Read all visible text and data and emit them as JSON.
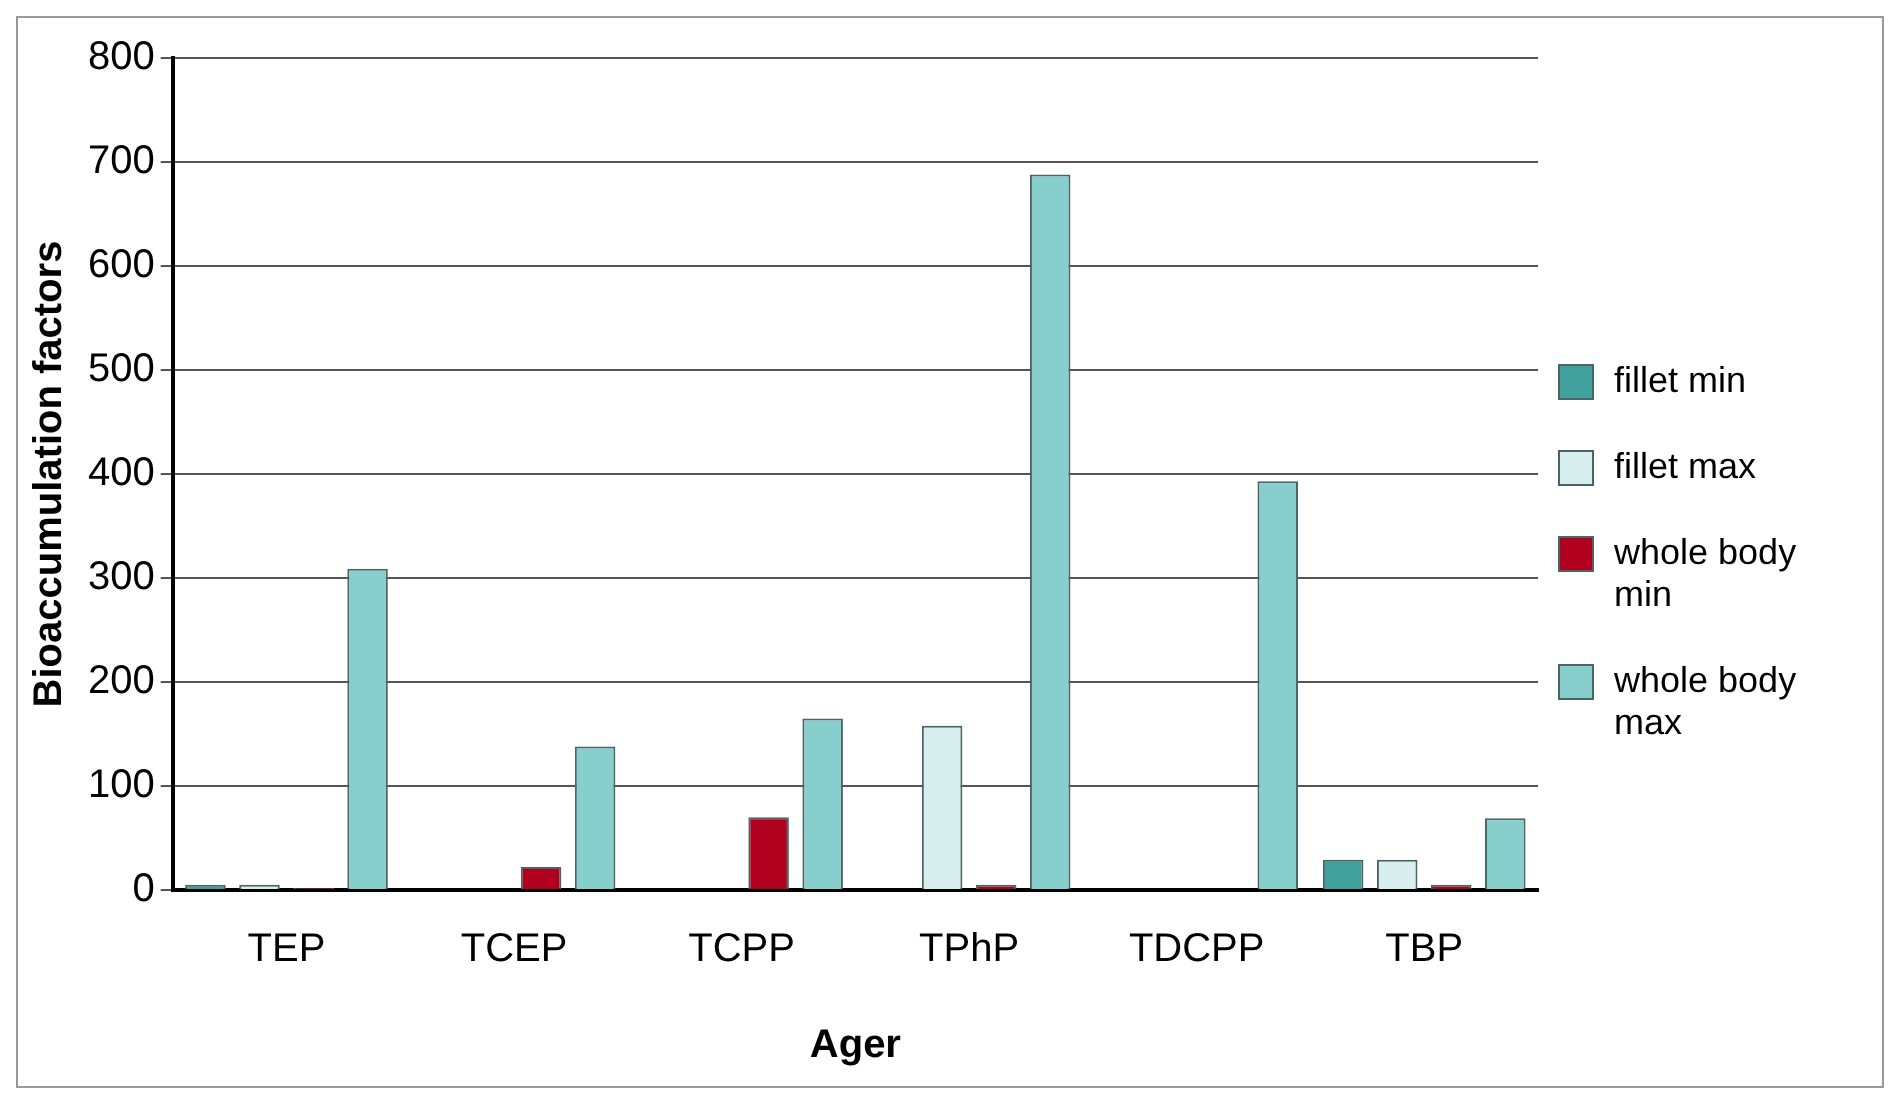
{
  "chart_data": {
    "type": "bar",
    "xlabel": "Ager",
    "ylabel": "Bioaccumulation factors",
    "categories": [
      "TEP",
      "TCEP",
      "TCPP",
      "TPhP",
      "TDCPP",
      "TBP"
    ],
    "series": [
      {
        "name": "fillet min",
        "color": "#3fa09c",
        "values": [
          5,
          null,
          null,
          null,
          null,
          29
        ]
      },
      {
        "name": "fillet max",
        "color": "#d6eeee",
        "values": [
          5,
          null,
          null,
          158,
          null,
          29
        ]
      },
      {
        "name": "whole body min",
        "color": "#b0001e",
        "values": [
          2,
          22,
          70,
          5,
          null,
          5
        ]
      },
      {
        "name": "whole body max",
        "color": "#86cfcc",
        "values": [
          309,
          138,
          165,
          688,
          393,
          69
        ]
      }
    ],
    "ylim": [
      0,
      800
    ],
    "yticks": [
      0,
      100,
      200,
      300,
      400,
      500,
      600,
      700,
      800
    ],
    "grid": "y",
    "legend": "right"
  }
}
